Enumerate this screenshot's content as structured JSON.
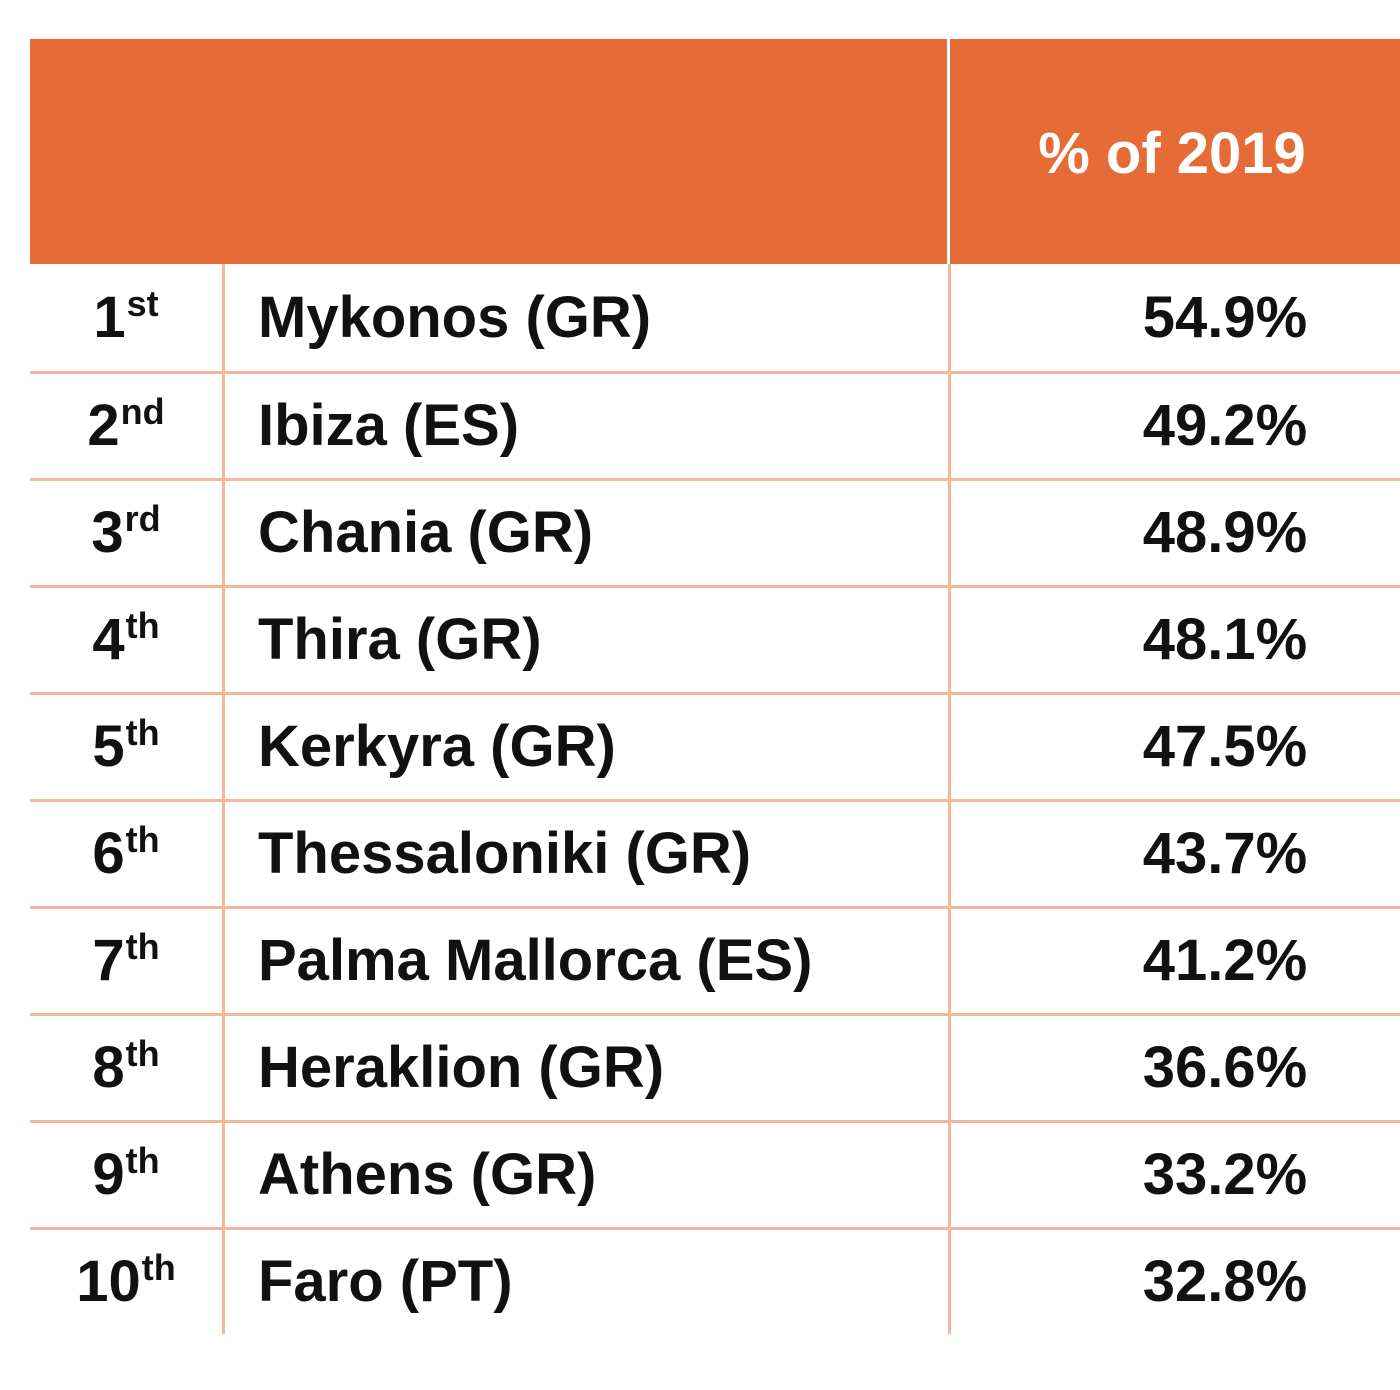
{
  "table": {
    "header": {
      "value_label": "% of 2019"
    },
    "rows": [
      {
        "rank": "1",
        "suffix": "st",
        "city": "Mykonos (GR)",
        "pct": "54.9%"
      },
      {
        "rank": "2",
        "suffix": "nd",
        "city": "Ibiza (ES)",
        "pct": "49.2%"
      },
      {
        "rank": "3",
        "suffix": "rd",
        "city": "Chania (GR)",
        "pct": "48.9%"
      },
      {
        "rank": "4",
        "suffix": "th",
        "city": "Thira (GR)",
        "pct": "48.1%"
      },
      {
        "rank": "5",
        "suffix": "th",
        "city": "Kerkyra (GR)",
        "pct": "47.5%"
      },
      {
        "rank": "6",
        "suffix": "th",
        "city": "Thessaloniki (GR)",
        "pct": "43.7%"
      },
      {
        "rank": "7",
        "suffix": "th",
        "city": "Palma Mallorca (ES)",
        "pct": "41.2%"
      },
      {
        "rank": "8",
        "suffix": "th",
        "city": "Heraklion (GR)",
        "pct": "36.6%"
      },
      {
        "rank": "9",
        "suffix": "th",
        "city": "Athens (GR)",
        "pct": "33.2%"
      },
      {
        "rank": "10",
        "suffix": "th",
        "city": "Faro (PT)",
        "pct": "32.8%"
      }
    ]
  },
  "colors": {
    "header_background": "#e56b37",
    "grid_lines": "#f3b79c",
    "text": "#111111",
    "header_text": "#ffffff"
  }
}
